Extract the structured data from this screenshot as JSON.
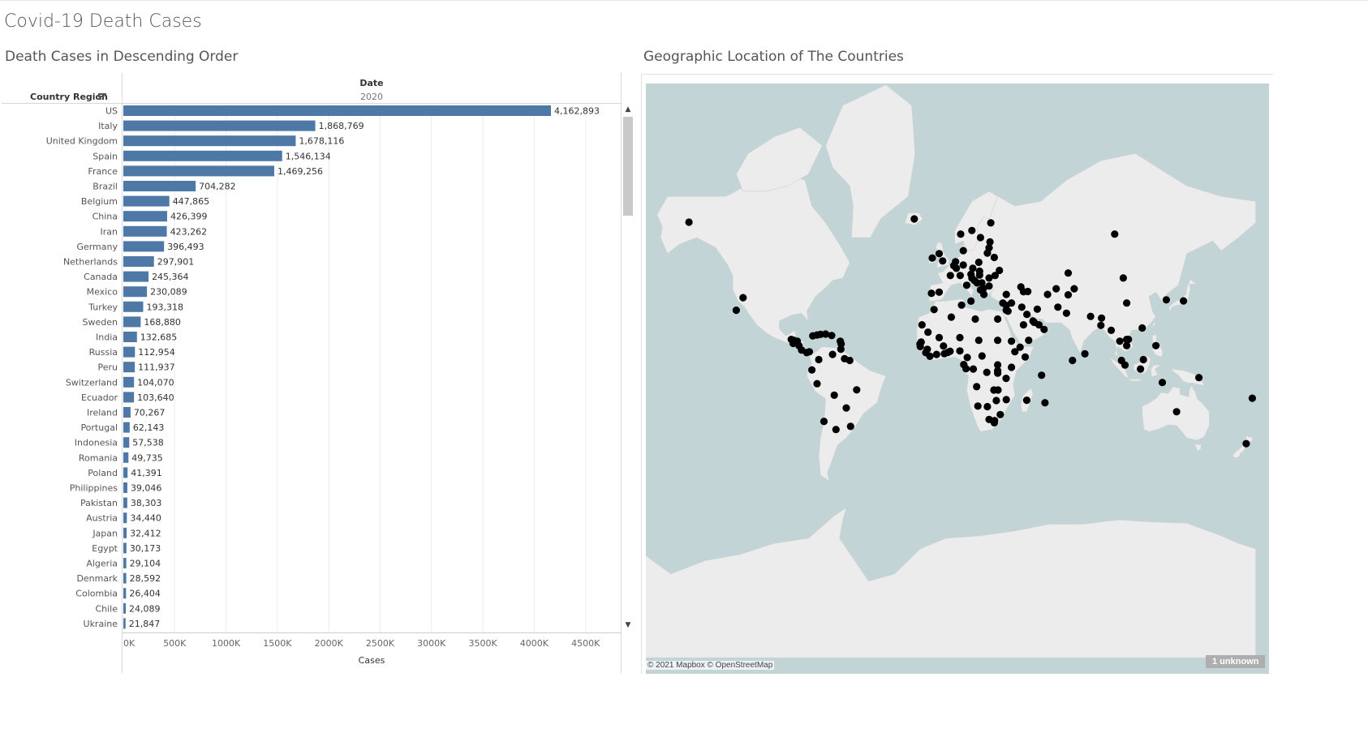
{
  "dashboard": {
    "title": "Covid-19 Death Cases"
  },
  "bar_sheet": {
    "title": "Death Cases in Descending Order",
    "column_header": "Date",
    "column_value": "2020",
    "row_header": "Country Region",
    "sort_icon": "sort-descending-icon",
    "scroll_up_icon": "chevron-up-icon",
    "scroll_down_icon": "chevron-down-icon"
  },
  "map_sheet": {
    "title": "Geographic Location of The Countries",
    "attribution": "© 2021 Mapbox © OpenStreetMap",
    "unknown_badge": "1 unknown"
  },
  "colors": {
    "bar": "#4e79a7",
    "water": "#c2d4d5",
    "land": "#ececec",
    "marker": "#000000"
  },
  "chart_data": [
    {
      "type": "bar",
      "orientation": "horizontal",
      "title": "Death Cases in Descending Order",
      "xlabel": "Cases",
      "ylabel": "Country Region",
      "xlim": [
        0,
        4850000
      ],
      "x_ticks": [
        "0K",
        "500K",
        "1000K",
        "1500K",
        "2000K",
        "2500K",
        "3000K",
        "3500K",
        "4000K",
        "4500K"
      ],
      "x_tick_values": [
        0,
        500000,
        1000000,
        1500000,
        2000000,
        2500000,
        3000000,
        3500000,
        4000000,
        4500000
      ],
      "grid": true,
      "categories": [
        "US",
        "Italy",
        "United Kingdom",
        "Spain",
        "France",
        "Brazil",
        "Belgium",
        "China",
        "Iran",
        "Germany",
        "Netherlands",
        "Canada",
        "Mexico",
        "Turkey",
        "Sweden",
        "India",
        "Russia",
        "Peru",
        "Switzerland",
        "Ecuador",
        "Ireland",
        "Portugal",
        "Indonesia",
        "Romania",
        "Poland",
        "Philippines",
        "Pakistan",
        "Austria",
        "Japan",
        "Egypt",
        "Algeria",
        "Denmark",
        "Colombia",
        "Chile",
        "Ukraine"
      ],
      "values": [
        4162893,
        1868769,
        1678116,
        1546134,
        1469256,
        704282,
        447865,
        426399,
        423262,
        396493,
        297901,
        245364,
        230089,
        193318,
        168880,
        132685,
        112954,
        111937,
        104070,
        103640,
        70267,
        62143,
        57538,
        49735,
        41391,
        39046,
        38303,
        34440,
        32412,
        30173,
        29104,
        28592,
        26404,
        24089,
        21847
      ],
      "value_labels": [
        "4,162,893",
        "1,868,769",
        "1,678,116",
        "1,546,134",
        "1,469,256",
        "704,282",
        "447,865",
        "426,399",
        "423,262",
        "396,493",
        "297,901",
        "245,364",
        "230,089",
        "193,318",
        "168,880",
        "132,685",
        "112,954",
        "111,937",
        "104,070",
        "103,640",
        "70,267",
        "62,143",
        "57,538",
        "49,735",
        "41,391",
        "39,046",
        "38,303",
        "34,440",
        "32,412",
        "30,173",
        "29,104",
        "28,592",
        "26,404",
        "24,089",
        "21,847"
      ]
    },
    {
      "type": "scatter",
      "subtype": "symbol-map",
      "title": "Geographic Location of The Countries",
      "projection": "web-mercator",
      "point_fields": [
        "longitude",
        "latitude"
      ],
      "points": [
        [
          -149.5,
          64.2
        ],
        [
          -118,
          37.5
        ],
        [
          -122,
          31.5
        ],
        [
          -88.9,
          13.8
        ],
        [
          -90,
          16
        ],
        [
          -86.5,
          15
        ],
        [
          -88.5,
          15.5
        ],
        [
          -85.5,
          12.5
        ],
        [
          -84,
          10
        ],
        [
          -81,
          8.5
        ],
        [
          -79.5,
          9
        ],
        [
          -77.5,
          18
        ],
        [
          -75,
          18.5
        ],
        [
          -73,
          18.8
        ],
        [
          -70,
          19
        ],
        [
          -66.5,
          18.2
        ],
        [
          -61.5,
          15
        ],
        [
          -61,
          13.5
        ],
        [
          -61.2,
          10.5
        ],
        [
          -66,
          7.5
        ],
        [
          -59,
          5
        ],
        [
          -56,
          4
        ],
        [
          -74,
          4.5
        ],
        [
          -78,
          -1.5
        ],
        [
          -75,
          -9.5
        ],
        [
          -65,
          -16
        ],
        [
          -58,
          -23
        ],
        [
          -55.5,
          -32.5
        ],
        [
          -64,
          -34
        ],
        [
          -71,
          -30
        ],
        [
          -52,
          -13
        ],
        [
          -18.5,
          65
        ],
        [
          -8,
          53.5
        ],
        [
          -4,
          55
        ],
        [
          -2,
          52.5
        ],
        [
          2.5,
          47
        ],
        [
          -4,
          40
        ],
        [
          -8.5,
          39.5
        ],
        [
          4.5,
          50.8
        ],
        [
          5.5,
          52.2
        ],
        [
          6,
          49.8
        ],
        [
          10,
          51
        ],
        [
          8.2,
          47
        ],
        [
          14.5,
          47.5
        ],
        [
          12,
          43
        ],
        [
          10,
          56
        ],
        [
          8.5,
          61
        ],
        [
          15,
          62
        ],
        [
          20,
          60
        ],
        [
          26,
          64
        ],
        [
          25.5,
          58.7
        ],
        [
          25,
          56.9
        ],
        [
          24,
          55.2
        ],
        [
          28,
          53.7
        ],
        [
          19,
          52
        ],
        [
          15.5,
          49.8
        ],
        [
          19.5,
          48.7
        ],
        [
          19.5,
          47.2
        ],
        [
          15,
          46
        ],
        [
          16.5,
          45
        ],
        [
          18,
          44
        ],
        [
          20.8,
          44
        ],
        [
          21.7,
          41.6
        ],
        [
          20,
          41
        ],
        [
          22,
          39
        ],
        [
          25,
          42.7
        ],
        [
          25,
          46
        ],
        [
          28.5,
          47
        ],
        [
          31,
          49
        ],
        [
          14.5,
          35.9
        ],
        [
          33,
          35
        ],
        [
          35,
          33.8
        ],
        [
          38,
          35
        ],
        [
          35,
          31.5
        ],
        [
          36,
          31
        ],
        [
          44,
          33
        ],
        [
          53,
          32
        ],
        [
          45,
          40.2
        ],
        [
          47.5,
          40.3
        ],
        [
          43.5,
          42.3
        ],
        [
          35,
          39
        ],
        [
          65,
          33
        ],
        [
          70,
          30
        ],
        [
          71,
          48
        ],
        [
          64,
          41.5
        ],
        [
          59,
          39
        ],
        [
          74.5,
          41.5
        ],
        [
          71,
          38.8
        ],
        [
          84,
          28.4
        ],
        [
          90.4,
          27.5
        ],
        [
          90,
          23.7
        ],
        [
          80.7,
          7.8
        ],
        [
          73.5,
          4
        ],
        [
          96,
          21
        ],
        [
          101,
          15
        ],
        [
          105,
          12.5
        ],
        [
          105,
          16
        ],
        [
          106,
          16
        ],
        [
          102,
          4
        ],
        [
          114.7,
          4.5
        ],
        [
          114,
          22.3
        ],
        [
          104,
          1.3
        ],
        [
          113,
          -1
        ],
        [
          122,
          12.5
        ],
        [
          125.7,
          -8.8
        ],
        [
          105,
          35
        ],
        [
          103,
          46
        ],
        [
          98,
          61
        ],
        [
          128,
          36.5
        ],
        [
          138,
          36
        ],
        [
          147,
          -6
        ],
        [
          134,
          -25
        ],
        [
          174.5,
          -40.5
        ],
        [
          178,
          -17.7
        ],
        [
          47,
          29.4
        ],
        [
          45,
          24
        ],
        [
          50.5,
          26
        ],
        [
          51.2,
          25.3
        ],
        [
          54,
          24
        ],
        [
          57,
          21.5
        ],
        [
          48,
          15.5
        ],
        [
          43,
          11.6
        ],
        [
          46,
          6
        ],
        [
          40,
          9
        ],
        [
          38,
          15
        ],
        [
          30,
          15.5
        ],
        [
          30,
          27
        ],
        [
          17,
          27
        ],
        [
          9,
          34
        ],
        [
          3,
          28
        ],
        [
          -7,
          31.8
        ],
        [
          -14,
          24
        ],
        [
          -10.5,
          20
        ],
        [
          -14.5,
          14.5
        ],
        [
          -15.2,
          13.4
        ],
        [
          -15,
          12
        ],
        [
          -10.9,
          10.4
        ],
        [
          -11.8,
          8.5
        ],
        [
          -9.4,
          6.4
        ],
        [
          -5.5,
          7.5
        ],
        [
          -1.5,
          12.3
        ],
        [
          -4,
          17
        ],
        [
          -1,
          7.9
        ],
        [
          1,
          8.6
        ],
        [
          2.3,
          9.3
        ],
        [
          8,
          9.5
        ],
        [
          8,
          17
        ],
        [
          19,
          15.5
        ],
        [
          20.9,
          6.6
        ],
        [
          12.3,
          5.7
        ],
        [
          10.3,
          1.6
        ],
        [
          11.6,
          -0.8
        ],
        [
          15.8,
          -1
        ],
        [
          23.7,
          -2.9
        ],
        [
          30,
          -2
        ],
        [
          30,
          1.4
        ],
        [
          30,
          -3.4
        ],
        [
          38,
          0
        ],
        [
          34.9,
          -6.4
        ],
        [
          55.5,
          -4.6
        ],
        [
          46.9,
          -18.8
        ],
        [
          57.5,
          -20.2
        ],
        [
          30.2,
          -13.1
        ],
        [
          27.8,
          -13.1
        ],
        [
          35,
          -18.5
        ],
        [
          29.2,
          -19
        ],
        [
          24,
          -22.3
        ],
        [
          18.5,
          -22
        ],
        [
          17.8,
          -11.2
        ],
        [
          25,
          -29
        ],
        [
          31.5,
          -26.5
        ],
        [
          28.2,
          -29.6
        ],
        [
          28,
          -30.7
        ]
      ]
    }
  ]
}
